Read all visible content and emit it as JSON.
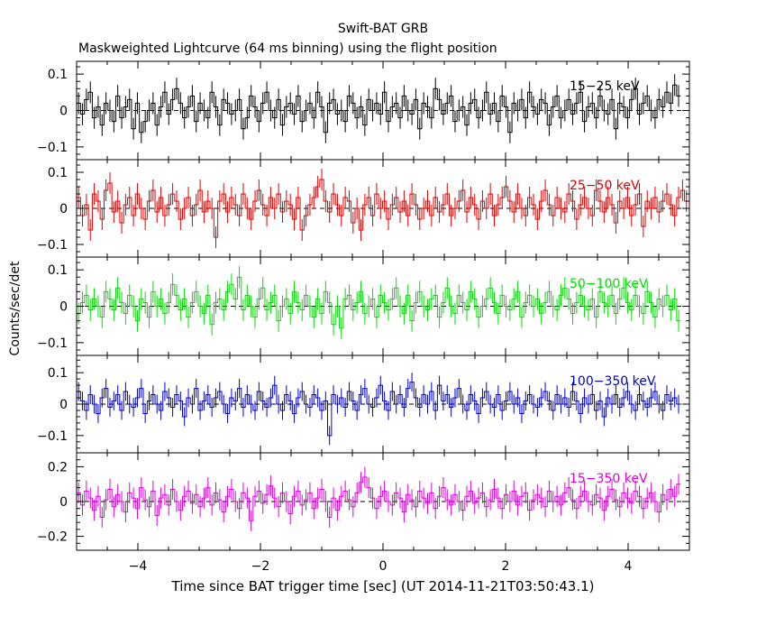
{
  "chart_data": {
    "type": "line",
    "title": "Swift-BAT GRB",
    "subtitle": "Maskweighted Lightcurve (64 ms binning) using the flight position",
    "xlabel": "Time since BAT trigger time [sec] (UT 2014-11-21T03:50:43.1)",
    "ylabel": "Counts/sec/det",
    "xlim": [
      -5,
      5
    ],
    "x_ticks": [
      "−4",
      "−2",
      "0",
      "2",
      "4"
    ],
    "x_tick_values": [
      -4,
      -2,
      0,
      2,
      4
    ],
    "bin_width": 0.064,
    "style": "step with error bars, dashed zero line",
    "panels": [
      {
        "name": "15−25 keV",
        "color": "#000000",
        "ylim": [
          -0.135,
          0.135
        ],
        "y_ticks": [
          "0.1",
          "0",
          "−0.1"
        ],
        "y_tick_values": [
          0.1,
          0,
          -0.1
        ],
        "noise_sigma": 0.035,
        "error_bar": 0.03,
        "values": [
          0.02,
          -0.01,
          0.03,
          0.05,
          -0.02,
          0.01,
          -0.04,
          0.02,
          0.0,
          -0.03,
          0.04,
          -0.02,
          0.01,
          0.03,
          -0.05,
          0.02,
          -0.06,
          -0.03,
          0.0,
          0.02,
          -0.04,
          0.01,
          0.05,
          -0.01,
          0.03,
          0.06,
          0.02,
          -0.02,
          0.01,
          0.04,
          -0.03,
          0.02,
          0.0,
          -0.02,
          0.05,
          0.01,
          -0.04,
          0.03,
          0.02,
          -0.01,
          0.0,
          0.03,
          -0.05,
          -0.02,
          0.04,
          0.01,
          -0.03,
          0.02,
          0.05,
          0.0,
          -0.02,
          0.03,
          -0.04,
          0.01,
          0.02,
          -0.01,
          0.04,
          -0.03,
          0.0,
          0.02,
          -0.02,
          0.05,
          0.01,
          -0.06,
          0.02,
          0.03,
          -0.01,
          0.0,
          -0.03,
          0.04,
          0.02,
          -0.02,
          0.01,
          -0.04,
          0.03,
          0.0,
          0.02,
          -0.01,
          0.05,
          -0.03,
          0.01,
          0.02,
          -0.02,
          0.04,
          0.0,
          -0.01,
          0.03,
          -0.05,
          0.02,
          0.01,
          -0.02,
          0.06,
          0.03,
          -0.01,
          0.02,
          0.04,
          -0.03,
          0.0,
          0.01,
          -0.04,
          0.02,
          0.03,
          -0.02,
          0.0,
          0.05,
          -0.01,
          0.02,
          -0.03,
          0.04,
          0.01,
          -0.06,
          0.02,
          0.0,
          0.03,
          -0.02,
          0.05,
          0.01,
          -0.01,
          0.03,
          0.02,
          -0.04,
          0.01,
          0.04,
          -0.02,
          0.0,
          0.03,
          -0.01,
          0.02,
          0.05,
          -0.03,
          0.01,
          0.02,
          -0.02,
          0.04,
          0.0,
          -0.01,
          0.03,
          -0.05,
          0.02,
          0.01,
          -0.02,
          0.03,
          0.06,
          -0.01,
          0.02,
          0.04,
          0.0,
          -0.02,
          0.03,
          0.01,
          0.05,
          0.02,
          0.07,
          0.04
        ]
      },
      {
        "name": "25−50 keV",
        "color": "#e00000",
        "ylim": [
          -0.135,
          0.135
        ],
        "y_ticks": [
          "0.1",
          "0",
          "−0.1"
        ],
        "y_tick_values": [
          0.1,
          0,
          -0.1
        ],
        "noise_sigma": 0.035,
        "error_bar": 0.03,
        "values": [
          0.03,
          -0.02,
          0.01,
          -0.06,
          0.04,
          0.02,
          -0.03,
          0.05,
          0.07,
          -0.01,
          0.02,
          -0.04,
          0.01,
          0.03,
          -0.02,
          0.04,
          0.0,
          -0.03,
          0.02,
          0.05,
          -0.01,
          0.03,
          -0.02,
          0.01,
          0.04,
          0.02,
          -0.03,
          0.0,
          0.03,
          -0.02,
          0.01,
          0.05,
          -0.01,
          0.02,
          0.0,
          -0.08,
          0.02,
          0.04,
          -0.01,
          0.03,
          0.01,
          -0.02,
          0.04,
          0.0,
          -0.03,
          0.02,
          0.05,
          0.01,
          -0.02,
          0.03,
          0.0,
          0.04,
          -0.01,
          0.02,
          0.01,
          -0.03,
          0.03,
          -0.06,
          -0.02,
          0.01,
          0.03,
          0.06,
          0.08,
          0.02,
          -0.01,
          0.04,
          0.01,
          -0.02,
          0.03,
          0.02,
          -0.04,
          0.0,
          -0.06,
          0.01,
          0.03,
          -0.02,
          0.04,
          0.0,
          0.02,
          -0.03,
          0.01,
          0.03,
          -0.01,
          0.02,
          -0.02,
          0.04,
          0.01,
          -0.03,
          0.0,
          0.02,
          -0.02,
          0.03,
          -0.01,
          0.01,
          0.04,
          -0.02,
          0.0,
          0.02,
          0.05,
          -0.01,
          0.03,
          0.01,
          -0.03,
          0.02,
          0.0,
          0.04,
          -0.02,
          0.01,
          0.03,
          0.06,
          0.02,
          -0.01,
          0.04,
          0.0,
          -0.02,
          0.03,
          0.01,
          -0.03,
          0.02,
          0.05,
          0.01,
          -0.02,
          0.03,
          0.0,
          -0.01,
          0.04,
          0.02,
          -0.03,
          0.01,
          0.03,
          0.0,
          -0.02,
          0.05,
          0.02,
          -0.01,
          0.03,
          0.01,
          -0.04,
          0.02,
          0.0,
          0.03,
          -0.02,
          0.01,
          0.04,
          -0.05,
          0.02,
          0.0,
          0.03,
          -0.01,
          0.02,
          0.04,
          0.01,
          -0.02,
          0.03,
          0.05,
          0.02
        ]
      },
      {
        "name": "50−100 keV",
        "color": "#00dd00",
        "ylim": [
          -0.135,
          0.135
        ],
        "y_ticks": [
          "0.1",
          "0",
          "−0.1"
        ],
        "y_tick_values": [
          0.1,
          0,
          -0.1
        ],
        "noise_sigma": 0.035,
        "error_bar": 0.03,
        "values": [
          -0.02,
          0.01,
          0.03,
          -0.01,
          0.02,
          0.0,
          -0.03,
          0.04,
          0.02,
          -0.01,
          0.05,
          0.01,
          -0.02,
          0.03,
          0.0,
          -0.04,
          0.02,
          0.01,
          -0.03,
          0.04,
          0.0,
          0.02,
          -0.02,
          0.01,
          0.06,
          0.03,
          -0.01,
          0.02,
          -0.03,
          0.01,
          0.04,
          0.0,
          -0.02,
          0.03,
          -0.05,
          0.01,
          0.02,
          -0.01,
          0.04,
          0.06,
          0.02,
          0.08,
          -0.01,
          0.03,
          0.0,
          -0.03,
          0.02,
          0.05,
          -0.01,
          0.01,
          0.03,
          -0.04,
          0.0,
          0.02,
          -0.02,
          0.04,
          0.01,
          -0.01,
          0.03,
          0.0,
          -0.03,
          0.02,
          -0.02,
          0.04,
          0.01,
          -0.05,
          0.0,
          -0.06,
          0.02,
          0.03,
          -0.01,
          0.01,
          0.04,
          -0.02,
          0.0,
          0.02,
          -0.03,
          0.03,
          0.01,
          -0.01,
          0.02,
          0.05,
          0.0,
          -0.02,
          0.03,
          -0.04,
          0.01,
          0.04,
          0.0,
          -0.01,
          0.02,
          0.03,
          -0.03,
          0.01,
          0.05,
          0.0,
          -0.02,
          0.03,
          0.01,
          -0.01,
          0.04,
          0.02,
          -0.03,
          0.0,
          0.02,
          0.05,
          0.01,
          -0.02,
          0.03,
          0.0,
          -0.01,
          0.02,
          0.04,
          -0.03,
          0.01,
          0.03,
          0.0,
          0.02,
          -0.02,
          0.01,
          0.04,
          0.0,
          -0.01,
          0.03,
          0.05,
          0.02,
          -0.02,
          0.01,
          0.03,
          0.0,
          -0.01,
          0.02,
          -0.03,
          0.04,
          0.01,
          0.0,
          0.03,
          -0.02,
          0.02,
          0.05,
          0.01,
          -0.01,
          0.03,
          0.0,
          -0.02,
          0.04,
          0.01,
          -0.03,
          0.02,
          0.0,
          0.03,
          -0.01,
          0.02,
          -0.04
        ]
      },
      {
        "name": "100−350 keV",
        "color": "#0000cc",
        "ylim": [
          -0.155,
          0.155
        ],
        "y_ticks": [
          "0.1",
          "0",
          "−0.1"
        ],
        "y_tick_values": [
          0.1,
          0,
          -0.1
        ],
        "noise_sigma": 0.035,
        "error_bar": 0.03,
        "values": [
          0.04,
          0.01,
          -0.02,
          0.03,
          0.0,
          -0.03,
          0.02,
          0.05,
          -0.01,
          0.01,
          0.03,
          -0.02,
          0.04,
          0.0,
          -0.01,
          0.02,
          0.05,
          -0.03,
          0.01,
          0.03,
          0.0,
          -0.02,
          0.04,
          0.02,
          -0.01,
          0.03,
          0.01,
          -0.04,
          0.02,
          0.0,
          0.05,
          -0.02,
          0.01,
          0.03,
          -0.01,
          0.02,
          0.04,
          0.0,
          -0.03,
          0.02,
          0.01,
          0.05,
          -0.01,
          0.03,
          0.0,
          -0.02,
          0.04,
          0.01,
          -0.01,
          0.02,
          0.06,
          0.0,
          -0.02,
          0.03,
          0.01,
          -0.03,
          0.02,
          0.04,
          0.0,
          -0.01,
          0.03,
          0.02,
          -0.02,
          0.01,
          -0.1,
          0.03,
          0.0,
          0.02,
          -0.01,
          0.04,
          0.01,
          -0.02,
          0.03,
          0.05,
          0.0,
          -0.01,
          0.02,
          0.06,
          0.01,
          -0.02,
          0.04,
          0.0,
          0.03,
          -0.01,
          0.05,
          0.07,
          0.02,
          -0.01,
          0.03,
          0.0,
          0.04,
          -0.02,
          0.06,
          0.01,
          0.03,
          -0.01,
          0.02,
          0.05,
          0.0,
          -0.02,
          0.03,
          0.01,
          -0.03,
          0.02,
          0.04,
          0.0,
          -0.01,
          0.03,
          -0.02,
          0.01,
          0.04,
          0.0,
          0.02,
          -0.03,
          0.01,
          0.03,
          0.0,
          -0.01,
          0.02,
          0.04,
          0.01,
          -0.02,
          0.03,
          0.0,
          0.02,
          -0.01,
          0.04,
          0.01,
          -0.03,
          0.02,
          0.0,
          0.03,
          -0.02,
          0.01,
          -0.04,
          0.02,
          0.0,
          0.03,
          -0.01,
          0.02,
          0.04,
          0.0,
          -0.02,
          0.03,
          0.01,
          -0.01,
          0.02,
          0.04,
          0.0,
          -0.02,
          0.03,
          0.01,
          0.02,
          0.0
        ]
      },
      {
        "name": "15−350 keV",
        "color": "#dd00dd",
        "ylim": [
          -0.28,
          0.28
        ],
        "y_ticks": [
          "0.2",
          "0",
          "−0.2"
        ],
        "y_tick_values": [
          0.2,
          0,
          -0.2
        ],
        "noise_sigma": 0.065,
        "error_bar": 0.06,
        "values": [
          0.05,
          -0.02,
          0.06,
          0.02,
          -0.05,
          0.03,
          -0.09,
          0.01,
          0.07,
          -0.03,
          0.04,
          0.0,
          -0.06,
          0.05,
          0.02,
          -0.04,
          0.08,
          0.01,
          -0.03,
          0.06,
          -0.08,
          0.02,
          0.04,
          -0.02,
          0.07,
          0.0,
          -0.05,
          0.03,
          0.06,
          -0.01,
          0.04,
          -0.03,
          0.02,
          0.08,
          -0.02,
          0.05,
          0.01,
          -0.06,
          0.03,
          0.07,
          0.0,
          -0.04,
          0.05,
          0.02,
          -0.11,
          0.03,
          0.06,
          -0.01,
          0.04,
          0.09,
          0.02,
          -0.03,
          0.05,
          0.0,
          -0.07,
          0.03,
          0.06,
          -0.02,
          0.01,
          0.05,
          -0.04,
          0.02,
          0.07,
          0.0,
          -0.09,
          0.02,
          -0.05,
          0.03,
          0.06,
          0.01,
          -0.03,
          0.05,
          0.11,
          0.14,
          0.08,
          0.02,
          -0.04,
          0.03,
          0.06,
          0.0,
          -0.02,
          0.05,
          0.02,
          -0.06,
          0.04,
          0.01,
          -0.03,
          0.06,
          0.02,
          -0.01,
          0.05,
          -0.04,
          0.03,
          0.08,
          0.01,
          -0.02,
          0.04,
          0.0,
          -0.05,
          0.03,
          0.06,
          -0.01,
          0.02,
          0.05,
          -0.03,
          0.01,
          0.07,
          0.02,
          -0.04,
          0.04,
          0.0,
          0.06,
          -0.02,
          0.03,
          0.05,
          -0.05,
          0.01,
          0.04,
          0.02,
          -0.03,
          0.06,
          0.0,
          0.03,
          -0.02,
          0.05,
          0.08,
          0.01,
          -0.04,
          0.03,
          0.06,
          0.0,
          -0.02,
          0.04,
          0.02,
          -0.05,
          0.03,
          0.07,
          0.01,
          -0.03,
          0.05,
          0.02,
          -0.01,
          0.06,
          0.03,
          -0.04,
          0.02,
          0.05,
          0.0,
          -0.06,
          0.04,
          0.01,
          0.07,
          0.03,
          0.1
        ]
      }
    ]
  }
}
